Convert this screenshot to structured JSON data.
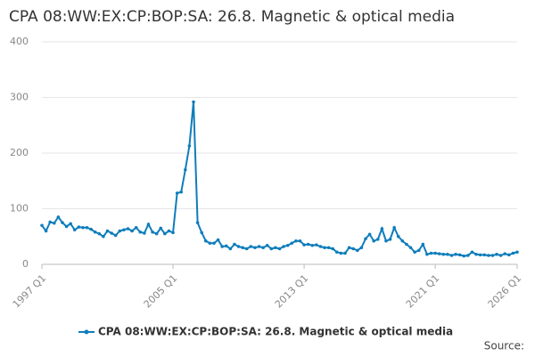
{
  "chart_data": {
    "type": "line",
    "title": "CPA 08:WW:EX:CP:BOP:SA: 26.8. Magnetic & optical media",
    "source": "Source:",
    "categories": [
      "1997 Q1",
      null,
      null,
      null,
      null,
      null,
      null,
      null,
      null,
      null,
      null,
      null,
      null,
      null,
      null,
      null,
      null,
      null,
      null,
      null,
      null,
      null,
      null,
      null,
      null,
      null,
      null,
      null,
      null,
      null,
      null,
      null,
      "2005 Q1",
      null,
      null,
      null,
      null,
      null,
      null,
      null,
      null,
      null,
      null,
      null,
      null,
      null,
      null,
      null,
      null,
      null,
      null,
      null,
      null,
      null,
      null,
      null,
      null,
      null,
      null,
      null,
      null,
      null,
      null,
      null,
      "2013 Q1",
      null,
      null,
      null,
      null,
      null,
      null,
      null,
      null,
      null,
      null,
      null,
      null,
      null,
      null,
      null,
      null,
      null,
      null,
      null,
      null,
      null,
      null,
      null,
      null,
      null,
      null,
      null,
      null,
      null,
      null,
      null,
      "2021 Q1",
      null,
      null,
      null,
      null,
      null,
      null,
      null,
      null,
      null,
      null,
      null,
      null,
      null,
      null,
      null,
      null,
      null,
      null,
      null,
      "2026 Q1"
    ],
    "series": [
      {
        "name": "CPA 08:WW:EX:CP:BOP:SA: 26.8. Magnetic & optical media",
        "color": "#0f7dbb",
        "values": [
          70,
          60,
          76,
          74,
          85,
          75,
          68,
          73,
          62,
          67,
          66,
          66,
          63,
          58,
          55,
          50,
          60,
          56,
          52,
          60,
          62,
          64,
          60,
          66,
          58,
          56,
          72,
          58,
          55,
          65,
          55,
          60,
          57,
          128,
          130,
          170,
          213,
          292,
          75,
          57,
          42,
          38,
          38,
          44,
          32,
          33,
          28,
          36,
          32,
          30,
          28,
          32,
          30,
          32,
          30,
          34,
          28,
          30,
          28,
          32,
          34,
          38,
          42,
          42,
          35,
          36,
          34,
          35,
          32,
          30,
          30,
          28,
          22,
          20,
          20,
          30,
          28,
          25,
          30,
          46,
          54,
          42,
          45,
          64,
          42,
          45,
          66,
          50,
          42,
          36,
          30,
          22,
          25,
          36,
          18,
          20,
          20,
          19,
          18,
          18,
          16,
          18,
          17,
          15,
          16,
          22,
          18,
          17,
          17,
          16,
          16,
          18,
          16,
          19,
          17,
          20,
          22
        ]
      }
    ],
    "ylim": [
      0,
      400
    ],
    "yticks": [
      0,
      100,
      200,
      300,
      400
    ],
    "grid": true
  }
}
